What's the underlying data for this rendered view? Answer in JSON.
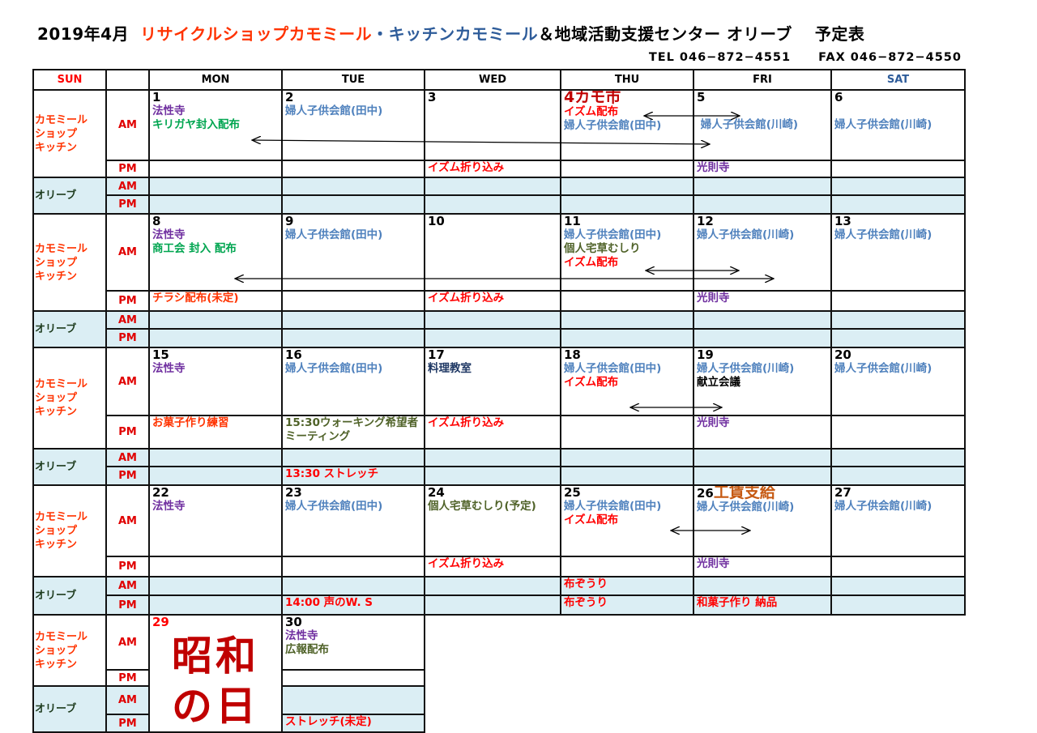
{
  "header": {
    "title_date": "2019年4月",
    "title_shop": "リサイクルショップカモミール",
    "title_kitchen": "・キッチンカモミール",
    "title_rest": "＆地域活動支援センター オリーブ　 予定表",
    "tel": "TEL 046−872−4551",
    "fax": "FAX 046−872−4550"
  },
  "colors": {
    "purple": "#7030a0",
    "green": "#00a550",
    "blue": "#4f81bd",
    "red": "#ff0000",
    "orange": "#ff3300",
    "olive": "#4f6228",
    "darkred": "#c00000",
    "brown": "#c65911",
    "navy": "#1f3864",
    "black": "#000000",
    "sat": "#2e5c9a",
    "olive_row_bg": "#dbeef4"
  },
  "columns": [
    "SUN",
    "",
    "MON",
    "TUE",
    "WED",
    "THU",
    "FRI",
    "SAT"
  ],
  "labels": {
    "shop": "カモミール\nショップ\nキッチン",
    "olive": "オリーブ",
    "am": "AM",
    "pm": "PM"
  },
  "weeks": [
    {
      "days": [
        {
          "num": "1",
          "am": [
            {
              "t": "法性寺",
              "c": "purple"
            },
            {
              "t": "キリガヤ封入配布",
              "c": "green"
            }
          ],
          "pm": [],
          "oam": [],
          "opm": []
        },
        {
          "num": "2",
          "am": [
            {
              "t": "婦人子供会館(田中)",
              "c": "blue"
            }
          ],
          "pm": [],
          "oam": [],
          "opm": []
        },
        {
          "num": "3",
          "am": [],
          "pm": [
            {
              "t": "イズム折り込み",
              "c": "red"
            }
          ],
          "oam": [],
          "opm": []
        },
        {
          "num": "4",
          "extra": "カモ市",
          "numc": "darkred",
          "extrac": "darkred",
          "am": [
            {
              "t": "イズム配布",
              "c": "red"
            },
            {
              "t": "婦人子供会館(田中)",
              "c": "blue"
            }
          ],
          "pm": [],
          "oam": [],
          "opm": []
        },
        {
          "num": "5",
          "am": [
            {
              "t": "",
              "c": "blue"
            },
            {
              "t": " 婦人子供会館(川崎)",
              "c": "blue"
            }
          ],
          "pm": [
            {
              "t": "光則寺",
              "c": "purple"
            }
          ],
          "oam": [],
          "opm": []
        },
        {
          "num": "6",
          "am": [
            {
              "t": "",
              "c": "blue"
            },
            {
              "t": "婦人子供会館(川崎)",
              "c": "blue"
            }
          ],
          "pm": [],
          "oam": [],
          "opm": []
        }
      ]
    },
    {
      "days": [
        {
          "num": "8",
          "am": [
            {
              "t": "法性寺",
              "c": "purple"
            },
            {
              "t": "商工会 封入 配布",
              "c": "green"
            }
          ],
          "pm": [
            {
              "t": "チラシ配布(未定)",
              "c": "orange"
            }
          ],
          "oam": [],
          "opm": []
        },
        {
          "num": "9",
          "am": [
            {
              "t": "婦人子供会館(田中)",
              "c": "blue"
            }
          ],
          "pm": [],
          "oam": [],
          "opm": []
        },
        {
          "num": "10",
          "am": [],
          "pm": [
            {
              "t": "イズム折り込み",
              "c": "red"
            }
          ],
          "oam": [],
          "opm": []
        },
        {
          "num": "11",
          "am": [
            {
              "t": "婦人子供会館(田中)",
              "c": "blue"
            },
            {
              "t": "個人宅草むしり",
              "c": "olive"
            },
            {
              "t": "イズム配布",
              "c": "red"
            }
          ],
          "pm": [],
          "oam": [],
          "opm": []
        },
        {
          "num": "12",
          "am": [
            {
              "t": "婦人子供会館(川崎)",
              "c": "blue"
            }
          ],
          "pm": [
            {
              "t": "光則寺",
              "c": "purple"
            }
          ],
          "oam": [],
          "opm": []
        },
        {
          "num": "13",
          "am": [
            {
              "t": "婦人子供会館(川崎)",
              "c": "blue"
            }
          ],
          "pm": [],
          "oam": [],
          "opm": []
        }
      ]
    },
    {
      "days": [
        {
          "num": "15",
          "am": [
            {
              "t": "法性寺",
              "c": "purple"
            }
          ],
          "pm": [
            {
              "t": "お菓子作り練習",
              "c": "orange"
            }
          ],
          "oam": [],
          "opm": []
        },
        {
          "num": "16",
          "am": [
            {
              "t": "婦人子供会館(田中)",
              "c": "blue"
            }
          ],
          "pm": [
            {
              "t": "15:30ウォーキング希望者ミーティング",
              "c": "olive"
            }
          ],
          "oam": [],
          "opm": [
            {
              "t": "13:30 ストレッチ",
              "c": "red"
            }
          ]
        },
        {
          "num": "17",
          "am": [
            {
              "t": "料理教室",
              "c": "navy"
            }
          ],
          "pm": [
            {
              "t": "イズム折り込み",
              "c": "red"
            }
          ],
          "oam": [],
          "opm": []
        },
        {
          "num": "18",
          "am": [
            {
              "t": "婦人子供会館(田中)",
              "c": "blue"
            },
            {
              "t": "イズム配布",
              "c": "red"
            }
          ],
          "pm": [],
          "oam": [],
          "opm": []
        },
        {
          "num": "19",
          "am": [
            {
              "t": "婦人子供会館(川崎)",
              "c": "blue"
            },
            {
              "t": "献立会議",
              "c": "black"
            }
          ],
          "pm": [
            {
              "t": "光則寺",
              "c": "purple"
            }
          ],
          "oam": [],
          "opm": []
        },
        {
          "num": "20",
          "am": [
            {
              "t": "婦人子供会館(川崎)",
              "c": "blue"
            }
          ],
          "pm": [],
          "oam": [],
          "opm": []
        }
      ]
    },
    {
      "days": [
        {
          "num": "22",
          "am": [
            {
              "t": "法性寺",
              "c": "purple"
            }
          ],
          "pm": [],
          "oam": [],
          "opm": []
        },
        {
          "num": "23",
          "am": [
            {
              "t": "婦人子供会館(田中)",
              "c": "blue"
            }
          ],
          "pm": [],
          "oam": [],
          "opm": [
            {
              "t": "14:00 声のW. S",
              "c": "red"
            }
          ]
        },
        {
          "num": "24",
          "am": [
            {
              "t": "個人宅草むしり(予定)",
              "c": "olive"
            }
          ],
          "pm": [
            {
              "t": "イズム折り込み",
              "c": "red"
            }
          ],
          "oam": [],
          "opm": []
        },
        {
          "num": "25",
          "am": [
            {
              "t": "婦人子供会館(田中)",
              "c": "blue"
            },
            {
              "t": "イズム配布",
              "c": "red"
            }
          ],
          "pm": [],
          "oam": [
            {
              "t": "布ぞうり",
              "c": "red"
            }
          ],
          "opm": [
            {
              "t": "布ぞうり",
              "c": "red"
            }
          ]
        },
        {
          "num": "26",
          "extra": "工賃支給",
          "extrac": "brown",
          "am": [
            {
              "t": "婦人子供会館(川崎)",
              "c": "blue"
            }
          ],
          "pm": [
            {
              "t": "光則寺",
              "c": "purple"
            }
          ],
          "oam": [],
          "opm": [
            {
              "t": "和菓子作り 納品",
              "c": "red"
            }
          ]
        },
        {
          "num": "27",
          "am": [
            {
              "t": "婦人子供会館(川崎)",
              "c": "blue"
            }
          ],
          "pm": [],
          "oam": [],
          "opm": []
        }
      ]
    },
    {
      "days": [
        {
          "num": "29",
          "numc": "red",
          "holiday": "昭和の日"
        },
        {
          "num": "30",
          "am": [
            {
              "t": "法性寺",
              "c": "purple"
            },
            {
              "t": "広報配布",
              "c": "olive"
            }
          ],
          "pm": [],
          "oam": [],
          "opm": [
            {
              "t": "ストレッチ(未定)",
              "c": "red"
            }
          ]
        }
      ]
    }
  ]
}
